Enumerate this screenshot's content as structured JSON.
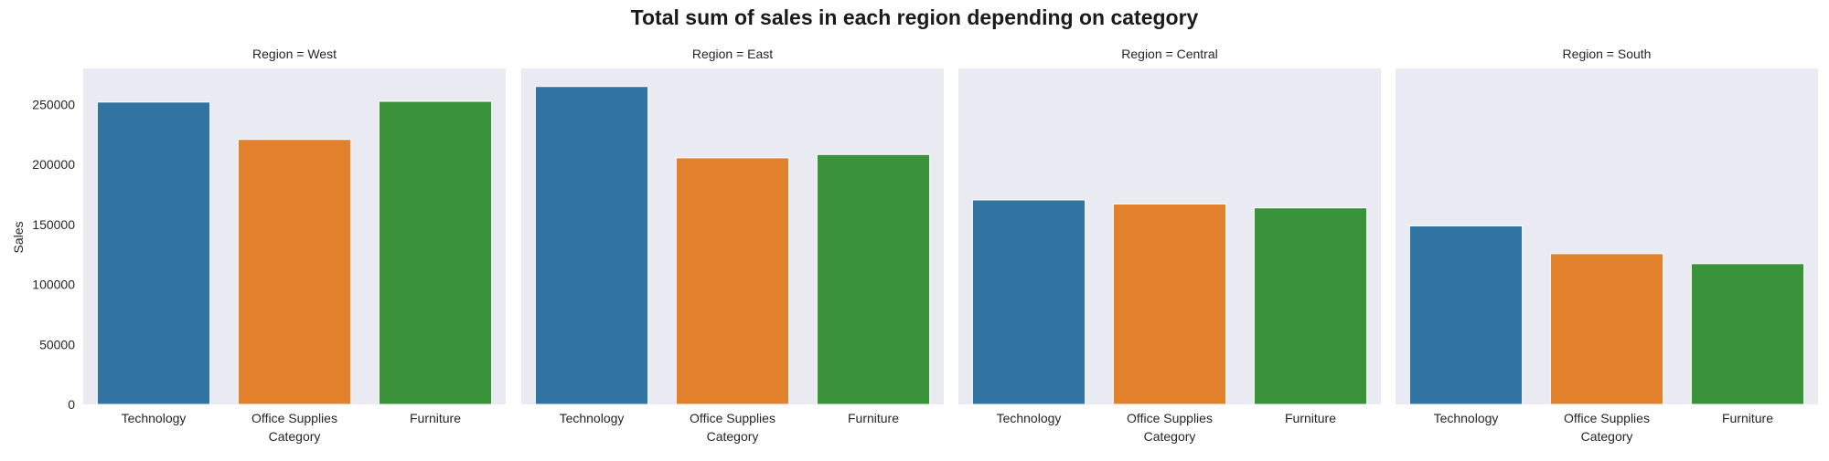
{
  "chart_data": {
    "type": "bar",
    "title": "Total sum of sales in each region depending on category",
    "xlabel": "Category",
    "ylabel": "Sales",
    "ylim": [
      0,
      280000
    ],
    "yticks": [
      0,
      50000,
      100000,
      150000,
      200000,
      250000
    ],
    "grid": false,
    "categories": [
      "Technology",
      "Office Supplies",
      "Furniture"
    ],
    "colors": [
      "#3274a1",
      "#e1812c",
      "#3a923a"
    ],
    "panels": [
      {
        "title": "Region = West",
        "values": [
          251992,
          220853,
          252613
        ]
      },
      {
        "title": "Region = East",
        "values": [
          264974,
          205516,
          208291
        ]
      },
      {
        "title": "Region = Central",
        "values": [
          170416,
          167026,
          163797
        ]
      },
      {
        "title": "Region = South",
        "values": [
          148772,
          125652,
          117299
        ]
      }
    ]
  }
}
